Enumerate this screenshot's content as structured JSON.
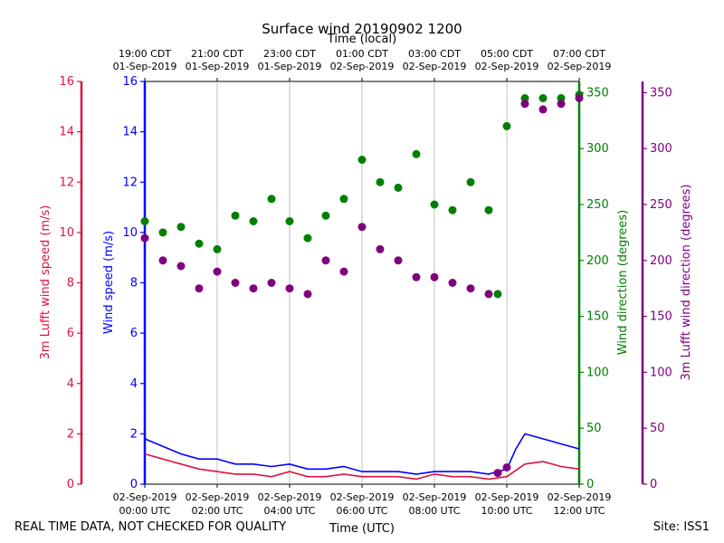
{
  "chart_data": {
    "type": "scatter",
    "title": "Surface wind 20190902 1200",
    "top_axis_label": "Time (local)",
    "xlabel": "Time (UTC)",
    "x_range_hours": [
      0,
      12
    ],
    "bottom_ticks": [
      {
        "hour": 0,
        "date": "02-Sep-2019",
        "time": "00:00 UTC"
      },
      {
        "hour": 2,
        "date": "02-Sep-2019",
        "time": "02:00 UTC"
      },
      {
        "hour": 4,
        "date": "02-Sep-2019",
        "time": "04:00 UTC"
      },
      {
        "hour": 6,
        "date": "02-Sep-2019",
        "time": "06:00 UTC"
      },
      {
        "hour": 8,
        "date": "02-Sep-2019",
        "time": "08:00 UTC"
      },
      {
        "hour": 10,
        "date": "02-Sep-2019",
        "time": "10:00 UTC"
      },
      {
        "hour": 12,
        "date": "02-Sep-2019",
        "time": "12:00 UTC"
      }
    ],
    "top_ticks": [
      {
        "hour": 0,
        "time": "19:00 CDT",
        "date": "01-Sep-2019"
      },
      {
        "hour": 2,
        "time": "21:00 CDT",
        "date": "01-Sep-2019"
      },
      {
        "hour": 4,
        "time": "23:00 CDT",
        "date": "01-Sep-2019"
      },
      {
        "hour": 6,
        "time": "01:00 CDT",
        "date": "02-Sep-2019"
      },
      {
        "hour": 8,
        "time": "03:00 CDT",
        "date": "02-Sep-2019"
      },
      {
        "hour": 10,
        "time": "05:00 CDT",
        "date": "02-Sep-2019"
      },
      {
        "hour": 12,
        "time": "07:00 CDT",
        "date": "02-Sep-2019"
      }
    ],
    "axes": {
      "lufft_speed": {
        "label": "3m Lufft wind speed (m/s)",
        "color": "#dc143c",
        "ylim": [
          0,
          16
        ],
        "ticks": [
          0,
          2,
          4,
          6,
          8,
          10,
          12,
          14,
          16
        ]
      },
      "wind_speed": {
        "label": "Wind speed (m/s)",
        "color": "#0000ff",
        "ylim": [
          0,
          16
        ],
        "ticks": [
          0,
          2,
          4,
          6,
          8,
          10,
          12,
          14,
          16
        ]
      },
      "wind_dir": {
        "label": "Wind direction (degrees)",
        "color": "#008000",
        "ylim": [
          0,
          360
        ],
        "ticks": [
          0,
          50,
          100,
          150,
          200,
          250,
          300,
          350
        ]
      },
      "lufft_dir": {
        "label": "3m Lufft wind direction (degrees)",
        "color": "#800080",
        "ylim": [
          0,
          360
        ],
        "ticks": [
          0,
          50,
          100,
          150,
          200,
          250,
          300,
          350
        ]
      }
    },
    "series": [
      {
        "name": "Wind speed",
        "kind": "line",
        "axis": "wind_speed",
        "color": "#0000ff",
        "x": [
          0,
          0.5,
          1,
          1.5,
          2,
          2.5,
          3,
          3.5,
          4,
          4.5,
          5,
          5.5,
          6,
          6.5,
          7,
          7.5,
          8,
          8.5,
          9,
          9.5,
          10,
          10.25,
          10.5,
          11,
          11.5,
          12
        ],
        "values": [
          1.8,
          1.5,
          1.2,
          1.0,
          1.0,
          0.8,
          0.8,
          0.7,
          0.8,
          0.6,
          0.6,
          0.7,
          0.5,
          0.5,
          0.5,
          0.4,
          0.5,
          0.5,
          0.5,
          0.4,
          0.6,
          1.4,
          2.0,
          1.8,
          1.6,
          1.4
        ]
      },
      {
        "name": "3m Lufft wind speed",
        "kind": "line",
        "axis": "lufft_speed",
        "color": "#dc143c",
        "x": [
          0,
          0.5,
          1,
          1.5,
          2,
          2.5,
          3,
          3.5,
          4,
          4.5,
          5,
          5.5,
          6,
          6.5,
          7,
          7.5,
          8,
          8.5,
          9,
          9.5,
          10,
          10.5,
          11,
          11.5,
          12
        ],
        "values": [
          1.2,
          1.0,
          0.8,
          0.6,
          0.5,
          0.4,
          0.4,
          0.3,
          0.5,
          0.3,
          0.3,
          0.4,
          0.3,
          0.3,
          0.3,
          0.2,
          0.4,
          0.3,
          0.3,
          0.2,
          0.3,
          0.8,
          0.9,
          0.7,
          0.6
        ]
      },
      {
        "name": "Wind direction",
        "kind": "scatter",
        "axis": "wind_dir",
        "color": "#008000",
        "x": [
          0,
          0.5,
          1,
          1.5,
          2,
          2.5,
          3,
          3.5,
          4,
          4.5,
          5,
          5.5,
          6,
          6.5,
          7,
          7.5,
          8,
          8.5,
          9,
          9.5,
          9.75,
          10,
          10.5,
          11,
          11.5,
          12
        ],
        "values": [
          235,
          225,
          230,
          215,
          210,
          240,
          235,
          255,
          235,
          220,
          240,
          255,
          290,
          270,
          265,
          295,
          250,
          245,
          270,
          245,
          170,
          320,
          345,
          345,
          345,
          348
        ]
      },
      {
        "name": "3m Lufft wind direction",
        "kind": "scatter",
        "axis": "lufft_dir",
        "color": "#800080",
        "x": [
          0,
          0.5,
          1,
          1.5,
          2,
          2.5,
          3,
          3.5,
          4,
          4.5,
          5,
          5.5,
          6,
          6.5,
          7,
          7.5,
          8,
          8.5,
          9,
          9.5,
          9.75,
          10,
          10.5,
          11,
          11.5,
          12
        ],
        "values": [
          220,
          200,
          195,
          175,
          190,
          180,
          175,
          180,
          175,
          170,
          200,
          190,
          230,
          210,
          200,
          185,
          185,
          180,
          175,
          170,
          10,
          15,
          340,
          335,
          340,
          345
        ]
      }
    ]
  },
  "footer": {
    "quality_note": "REAL TIME DATA, NOT CHECKED FOR QUALITY",
    "site": "Site: ISS1"
  }
}
